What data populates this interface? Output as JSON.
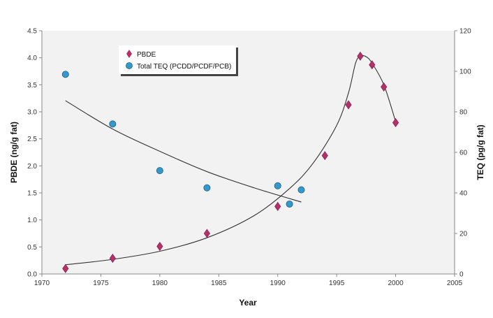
{
  "chart_data": {
    "type": "scatter",
    "title": "",
    "xlabel": "Year",
    "ylabel_left": "PBDE (ng/g fat)",
    "ylabel_right": "TEQ (pg/g fat)",
    "xlim": [
      1970,
      2005
    ],
    "ylim_left": [
      0,
      4.5
    ],
    "ylim_right": [
      0,
      120
    ],
    "x_ticks": [
      1970,
      1975,
      1980,
      1985,
      1990,
      1995,
      2000,
      2005
    ],
    "y_left_ticks": [
      0.0,
      0.5,
      1.0,
      1.5,
      2.0,
      2.5,
      3.0,
      3.5,
      4.0,
      4.5
    ],
    "y_right_ticks": [
      0,
      20,
      40,
      60,
      80,
      100,
      120
    ],
    "legend_position": "top-left",
    "grid": false,
    "background_color": "#f2f2f2",
    "series": [
      {
        "name": "PBDE",
        "axis": "left",
        "marker": "diamond",
        "color": "#b5306b",
        "points": [
          {
            "x": 1972,
            "y": 0.1
          },
          {
            "x": 1976,
            "y": 0.29
          },
          {
            "x": 1980,
            "y": 0.51
          },
          {
            "x": 1984,
            "y": 0.75
          },
          {
            "x": 1990,
            "y": 1.25
          },
          {
            "x": 1994,
            "y": 2.19
          },
          {
            "x": 1996,
            "y": 3.13
          },
          {
            "x": 1997,
            "y": 4.03
          },
          {
            "x": 1998,
            "y": 3.87
          },
          {
            "x": 1999,
            "y": 3.46
          },
          {
            "x": 2000,
            "y": 2.8
          }
        ],
        "trend": [
          {
            "x": 1972,
            "y": 0.17
          },
          {
            "x": 1976,
            "y": 0.27
          },
          {
            "x": 1980,
            "y": 0.42
          },
          {
            "x": 1984,
            "y": 0.67
          },
          {
            "x": 1988,
            "y": 1.08
          },
          {
            "x": 1991,
            "y": 1.58
          },
          {
            "x": 1993,
            "y": 2.05
          },
          {
            "x": 1995,
            "y": 2.75
          },
          {
            "x": 1996,
            "y": 3.35
          },
          {
            "x": 1996.6,
            "y": 3.9
          },
          {
            "x": 1997,
            "y": 4.03
          },
          {
            "x": 1997.5,
            "y": 4.02
          },
          {
            "x": 1998,
            "y": 3.9
          },
          {
            "x": 1999,
            "y": 3.5
          },
          {
            "x": 2000,
            "y": 2.82
          }
        ]
      },
      {
        "name": "Total TEQ (PCDD/PCDF/PCB)",
        "axis": "right",
        "marker": "circle",
        "color": "#3399cc",
        "points": [
          {
            "x": 1972,
            "y": 98.5
          },
          {
            "x": 1976,
            "y": 74
          },
          {
            "x": 1980,
            "y": 51
          },
          {
            "x": 1984,
            "y": 42.5
          },
          {
            "x": 1990,
            "y": 43.5
          },
          {
            "x": 1991,
            "y": 34.5
          },
          {
            "x": 1992,
            "y": 41.5
          }
        ],
        "trend": [
          {
            "x": 1972,
            "y": 85.5
          },
          {
            "x": 1976,
            "y": 71.5
          },
          {
            "x": 1980,
            "y": 60.5
          },
          {
            "x": 1984,
            "y": 50.5
          },
          {
            "x": 1988,
            "y": 42.5
          },
          {
            "x": 1992,
            "y": 35.5
          }
        ]
      }
    ]
  }
}
